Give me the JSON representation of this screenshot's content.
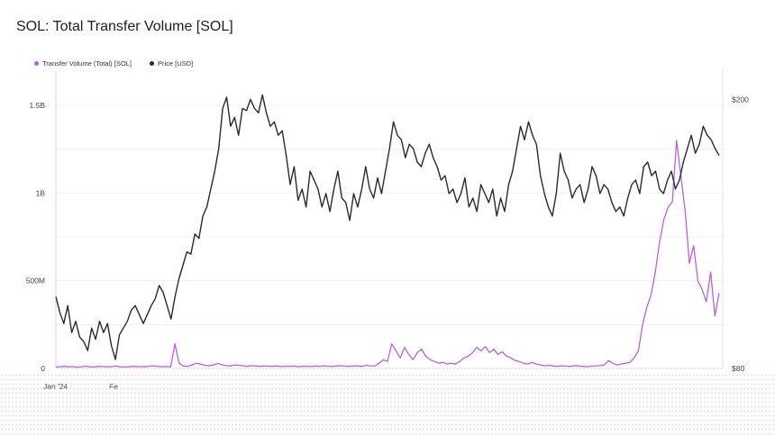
{
  "chart_data": {
    "type": "line",
    "title": "SOL: Total Transfer Volume [SOL]",
    "legend_position": "top-left",
    "grid": true,
    "x_range": [
      "2024-01-01",
      "2024-04-06"
    ],
    "x_ticks": [
      "Jan '24",
      "Fe"
    ],
    "y_left": {
      "ticks": [
        "0",
        "500M",
        "1B",
        "1.5B"
      ],
      "tick_values": [
        0,
        500000000,
        1000000000,
        1500000000
      ],
      "range": [
        0,
        1700000000
      ]
    },
    "y_right": {
      "ticks": [
        "$80",
        "$200"
      ],
      "tick_values": [
        80,
        200
      ],
      "range": [
        80,
        213
      ]
    },
    "series": [
      {
        "name": "Transfer Volume (Total) [SOL]",
        "axis": "left",
        "color": "#b85fe3",
        "values": [
          8000000,
          10000000,
          12000000,
          9000000,
          11000000,
          7000000,
          10000000,
          13000000,
          9000000,
          8000000,
          12000000,
          11000000,
          9000000,
          10000000,
          14000000,
          10000000,
          8000000,
          9000000,
          12000000,
          10000000,
          11000000,
          9000000,
          13000000,
          15000000,
          12000000,
          10000000,
          11000000,
          9000000,
          140000000,
          30000000,
          14000000,
          12000000,
          20000000,
          30000000,
          25000000,
          18000000,
          15000000,
          20000000,
          28000000,
          22000000,
          16000000,
          14000000,
          20000000,
          18000000,
          15000000,
          12000000,
          16000000,
          14000000,
          12000000,
          15000000,
          13000000,
          12000000,
          14000000,
          11000000,
          13000000,
          12000000,
          14000000,
          10000000,
          12000000,
          13000000,
          11000000,
          14000000,
          12000000,
          15000000,
          13000000,
          12000000,
          14000000,
          16000000,
          13000000,
          12000000,
          15000000,
          14000000,
          12000000,
          18000000,
          15000000,
          13000000,
          30000000,
          50000000,
          40000000,
          140000000,
          100000000,
          60000000,
          120000000,
          80000000,
          50000000,
          90000000,
          110000000,
          70000000,
          50000000,
          40000000,
          30000000,
          35000000,
          25000000,
          30000000,
          25000000,
          40000000,
          60000000,
          70000000,
          90000000,
          120000000,
          100000000,
          125000000,
          90000000,
          110000000,
          80000000,
          95000000,
          70000000,
          60000000,
          45000000,
          40000000,
          30000000,
          25000000,
          35000000,
          25000000,
          20000000,
          15000000,
          18000000,
          14000000,
          12000000,
          15000000,
          13000000,
          12000000,
          16000000,
          14000000,
          12000000,
          10000000,
          13000000,
          15000000,
          16000000,
          20000000,
          45000000,
          30000000,
          20000000,
          25000000,
          30000000,
          35000000,
          60000000,
          100000000,
          250000000,
          350000000,
          420000000,
          550000000,
          720000000,
          850000000,
          920000000,
          950000000,
          1300000000,
          1100000000,
          900000000,
          600000000,
          700000000,
          500000000,
          450000000,
          380000000,
          550000000,
          300000000,
          430000000
        ]
      },
      {
        "name": "Price [USD]",
        "axis": "right",
        "color": "#2a2a2a",
        "values": [
          112,
          105,
          100,
          108,
          96,
          101,
          94,
          92,
          88,
          98,
          93,
          101,
          96,
          100,
          90,
          84,
          95,
          98,
          101,
          106,
          108,
          104,
          100,
          104,
          108,
          111,
          117,
          114,
          108,
          102,
          112,
          120,
          126,
          132,
          131,
          140,
          138,
          148,
          152,
          160,
          168,
          178,
          196,
          201,
          188,
          192,
          184,
          196,
          195,
          200,
          196,
          194,
          202,
          194,
          188,
          190,
          184,
          186,
          175,
          162,
          170,
          155,
          160,
          152,
          168,
          164,
          160,
          152,
          158,
          150,
          160,
          168,
          156,
          154,
          146,
          158,
          152,
          160,
          170,
          160,
          156,
          165,
          158,
          168,
          178,
          190,
          184,
          182,
          174,
          180,
          178,
          172,
          170,
          176,
          180,
          174,
          170,
          164,
          166,
          158,
          160,
          154,
          158,
          165,
          152,
          156,
          150,
          162,
          158,
          154,
          160,
          148,
          156,
          150,
          162,
          168,
          178,
          188,
          182,
          190,
          184,
          180,
          166,
          158,
          152,
          148,
          158,
          176,
          168,
          164,
          156,
          160,
          162,
          154,
          160,
          170,
          166,
          158,
          162,
          160,
          154,
          150,
          152,
          148,
          156,
          162,
          164,
          158,
          170,
          172,
          166,
          168,
          160,
          158,
          164,
          168,
          160,
          164,
          172,
          178,
          184,
          176,
          180,
          188,
          184,
          182,
          178,
          175
        ]
      }
    ]
  }
}
